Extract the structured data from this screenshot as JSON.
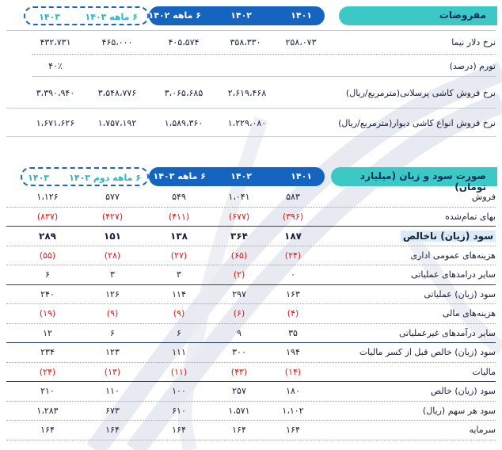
{
  "assumptions": {
    "title": "مفروضات",
    "headers": [
      "۱۴۰۱",
      "۱۴۰۲",
      "۶ ماهه ۱۴۰۲",
      "۶ ماهه ۱۴۰۳",
      "۱۴۰۳"
    ],
    "rows": [
      {
        "label": "نرخ دلار نیما",
        "values": [
          "۲۵۸،۰۷۳",
          "۳۵۸،۳۳۰",
          "۴۰۵،۵۷۴",
          "۴۶۵،۰۰۰",
          "۴۳۲،۷۳۱"
        ]
      },
      {
        "label": "تورم (درصد)",
        "values": [
          "",
          "",
          "",
          "",
          "۴۰٪"
        ]
      },
      {
        "label": "نرخ فروش کاشی پرسلانی(مترمربع/ریال)",
        "values": [
          "",
          "۲،۶۱۹،۴۶۸",
          "۳،۰۶۵،۶۸۵",
          "۳،۵۴۸،۷۷۶",
          "۳،۳۹۰،۹۴۰"
        ]
      },
      {
        "label": "نرخ فروش انواع کاشی دیوار(مترمربع/ریال)",
        "values": [
          "",
          "۱،۲۲۹،۰۸۰",
          "۱،۵۸۹،۳۶۰",
          "۱،۷۵۷،۱۹۲",
          "۱،۶۷۱،۶۲۶"
        ]
      }
    ]
  },
  "income": {
    "title": "صورت سود و زیان (میلیارد تومان)",
    "headers": [
      "۱۴۰۱",
      "۱۴۰۲",
      "۶ ماهه ۱۴۰۳",
      "۶ ماهه دوم ۱۴۰۳",
      "۱۴۰۳"
    ],
    "rows": [
      {
        "label": "فروش",
        "values": [
          "۵۸۳",
          "۱،۰۴۱",
          "۵۴۹",
          "۵۷۷",
          "۱،۱۲۶"
        ]
      },
      {
        "label": "بهای تمام‌شده",
        "values": [
          "(۳۹۶)",
          "(۶۷۷)",
          "(۴۱۱)",
          "(۴۲۷)",
          "(۸۳۷)"
        ]
      },
      {
        "label": "سود (زیان) ناخالص",
        "values": [
          "۱۸۷",
          "۳۶۴",
          "۱۳۸",
          "۱۵۱",
          "۲۸۹"
        ]
      },
      {
        "label": "هزینه‌های عمومی اداری",
        "values": [
          "(۲۴)",
          "(۶۵)",
          "(۲۷)",
          "(۲۸)",
          "(۵۵)"
        ]
      },
      {
        "label": "سایر درامدهای عملیاتی",
        "values": [
          "۰",
          "(۲)",
          "۳",
          "۳",
          "۶"
        ]
      },
      {
        "label": "سود (زیان) عملیاتی",
        "values": [
          "۱۶۳",
          "۲۹۷",
          "۱۱۴",
          "۱۲۶",
          "۲۴۰"
        ]
      },
      {
        "label": "هزینه‌های مالی",
        "values": [
          "(۴)",
          "(۶)",
          "(۹)",
          "(۹)",
          "(۱۹)"
        ]
      },
      {
        "label": "سایر درآمدهای غیرعملیاتی",
        "values": [
          "۳۵",
          "۹",
          "۶",
          "۶",
          "۱۲"
        ]
      },
      {
        "label": "سود (زیان) خالص قبل از کسر مالیات",
        "values": [
          "۱۹۴",
          "۳۰۰",
          "۱۱۱",
          "۱۲۳",
          "۲۳۴"
        ]
      },
      {
        "label": "مالیات",
        "values": [
          "(۱۴)",
          "(۴۳)",
          "(۱۱)",
          "(۱۳)",
          "(۲۴)"
        ]
      },
      {
        "label": "سود (زیان) خالص",
        "values": [
          "۱۸۰",
          "۲۵۷",
          "۱۰۰",
          "۱۱۰",
          "۲۱۰"
        ]
      },
      {
        "label": "سود هر سهم (ریال)",
        "values": [
          "۱،۱۰۲",
          "۱،۵۷۱",
          "۶۱۰",
          "۶۷۳",
          "۱،۲۸۳"
        ]
      },
      {
        "label": "سرمایه",
        "values": [
          "۱۶۴",
          "۱۶۴",
          "۱۶۴",
          "۱۶۴",
          "۱۶۴"
        ]
      }
    ]
  },
  "colors": {
    "teal": "#3cc8c4",
    "blue": "#1565c0",
    "negative": "#d81b1b"
  }
}
